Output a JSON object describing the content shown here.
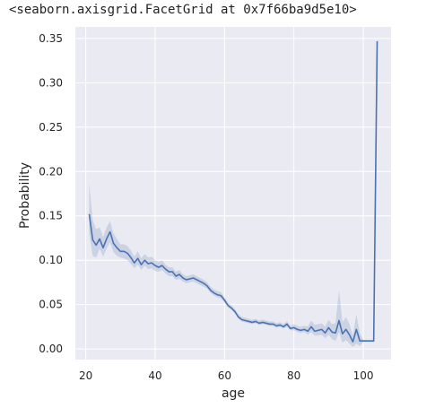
{
  "output": {
    "repr_text": "<seaborn.axisgrid.FacetGrid at 0x7f66ba9d5e10>"
  },
  "colors": {
    "background": "#eaeaf2",
    "grid": "#ffffff",
    "line": "#4c72b0",
    "band": "#4c72b0",
    "tick_text": "#262626"
  },
  "chart_data": {
    "type": "line",
    "xlabel": "age",
    "ylabel": "Probability",
    "xlim": [
      17,
      108
    ],
    "ylim": [
      -0.012,
      0.363
    ],
    "xticks": [
      20,
      40,
      60,
      80,
      100
    ],
    "yticks": [
      0.0,
      0.05,
      0.1,
      0.15,
      0.2,
      0.25,
      0.3,
      0.35
    ],
    "ytick_labels": [
      "0.00",
      "0.05",
      "0.10",
      "0.15",
      "0.20",
      "0.25",
      "0.30",
      "0.35"
    ],
    "grid": true,
    "x": [
      21,
      22,
      23,
      24,
      25,
      26,
      27,
      28,
      29,
      30,
      31,
      32,
      33,
      34,
      35,
      36,
      37,
      38,
      39,
      40,
      41,
      42,
      43,
      44,
      45,
      46,
      47,
      48,
      49,
      50,
      51,
      52,
      53,
      54,
      55,
      56,
      57,
      58,
      59,
      60,
      61,
      62,
      63,
      64,
      65,
      66,
      67,
      68,
      69,
      70,
      71,
      72,
      73,
      74,
      75,
      76,
      77,
      78,
      79,
      80,
      81,
      82,
      83,
      84,
      85,
      86,
      87,
      88,
      89,
      90,
      91,
      92,
      93,
      94,
      95,
      96,
      97,
      98,
      99,
      100,
      101,
      102,
      103,
      104
    ],
    "y": [
      0.152,
      0.123,
      0.117,
      0.124,
      0.114,
      0.124,
      0.132,
      0.119,
      0.114,
      0.11,
      0.11,
      0.108,
      0.103,
      0.097,
      0.102,
      0.095,
      0.1,
      0.096,
      0.097,
      0.094,
      0.092,
      0.094,
      0.09,
      0.087,
      0.087,
      0.082,
      0.084,
      0.08,
      0.078,
      0.079,
      0.08,
      0.078,
      0.076,
      0.074,
      0.071,
      0.066,
      0.063,
      0.061,
      0.06,
      0.055,
      0.049,
      0.046,
      0.042,
      0.036,
      0.033,
      0.032,
      0.031,
      0.03,
      0.031,
      0.029,
      0.03,
      0.029,
      0.028,
      0.028,
      0.026,
      0.027,
      0.025,
      0.028,
      0.023,
      0.024,
      0.022,
      0.021,
      0.022,
      0.02,
      0.025,
      0.02,
      0.021,
      0.022,
      0.018,
      0.024,
      0.019,
      0.018,
      0.032,
      0.017,
      0.022,
      0.016,
      0.008,
      0.022,
      0.009,
      0.009,
      0.009,
      0.009,
      0.009,
      0.347
    ],
    "ci_lower": [
      0.13,
      0.105,
      0.103,
      0.113,
      0.104,
      0.113,
      0.12,
      0.109,
      0.105,
      0.103,
      0.102,
      0.1,
      0.096,
      0.091,
      0.095,
      0.089,
      0.094,
      0.09,
      0.091,
      0.088,
      0.087,
      0.089,
      0.085,
      0.082,
      0.082,
      0.078,
      0.079,
      0.076,
      0.074,
      0.075,
      0.076,
      0.074,
      0.072,
      0.07,
      0.068,
      0.063,
      0.06,
      0.058,
      0.057,
      0.052,
      0.047,
      0.044,
      0.04,
      0.034,
      0.031,
      0.03,
      0.029,
      0.028,
      0.029,
      0.027,
      0.028,
      0.027,
      0.026,
      0.026,
      0.024,
      0.025,
      0.023,
      0.025,
      0.021,
      0.021,
      0.019,
      0.018,
      0.019,
      0.016,
      0.019,
      0.015,
      0.015,
      0.016,
      0.012,
      0.016,
      0.011,
      0.009,
      0.019,
      0.007,
      0.01,
      0.006,
      0.002,
      0.006,
      0.003,
      0.008,
      0.008,
      0.008,
      0.008,
      0.346
    ],
    "ci_upper": [
      0.187,
      0.145,
      0.135,
      0.137,
      0.126,
      0.137,
      0.144,
      0.13,
      0.124,
      0.118,
      0.118,
      0.116,
      0.111,
      0.104,
      0.11,
      0.102,
      0.107,
      0.103,
      0.104,
      0.1,
      0.098,
      0.1,
      0.095,
      0.092,
      0.092,
      0.087,
      0.089,
      0.084,
      0.082,
      0.083,
      0.084,
      0.082,
      0.08,
      0.078,
      0.075,
      0.07,
      0.067,
      0.065,
      0.064,
      0.058,
      0.052,
      0.049,
      0.045,
      0.039,
      0.036,
      0.035,
      0.034,
      0.033,
      0.034,
      0.032,
      0.033,
      0.032,
      0.031,
      0.031,
      0.029,
      0.03,
      0.028,
      0.031,
      0.026,
      0.028,
      0.026,
      0.025,
      0.026,
      0.025,
      0.032,
      0.027,
      0.028,
      0.029,
      0.025,
      0.033,
      0.028,
      0.029,
      0.066,
      0.03,
      0.036,
      0.028,
      0.015,
      0.039,
      0.018,
      0.01,
      0.01,
      0.01,
      0.01,
      0.348
    ]
  }
}
